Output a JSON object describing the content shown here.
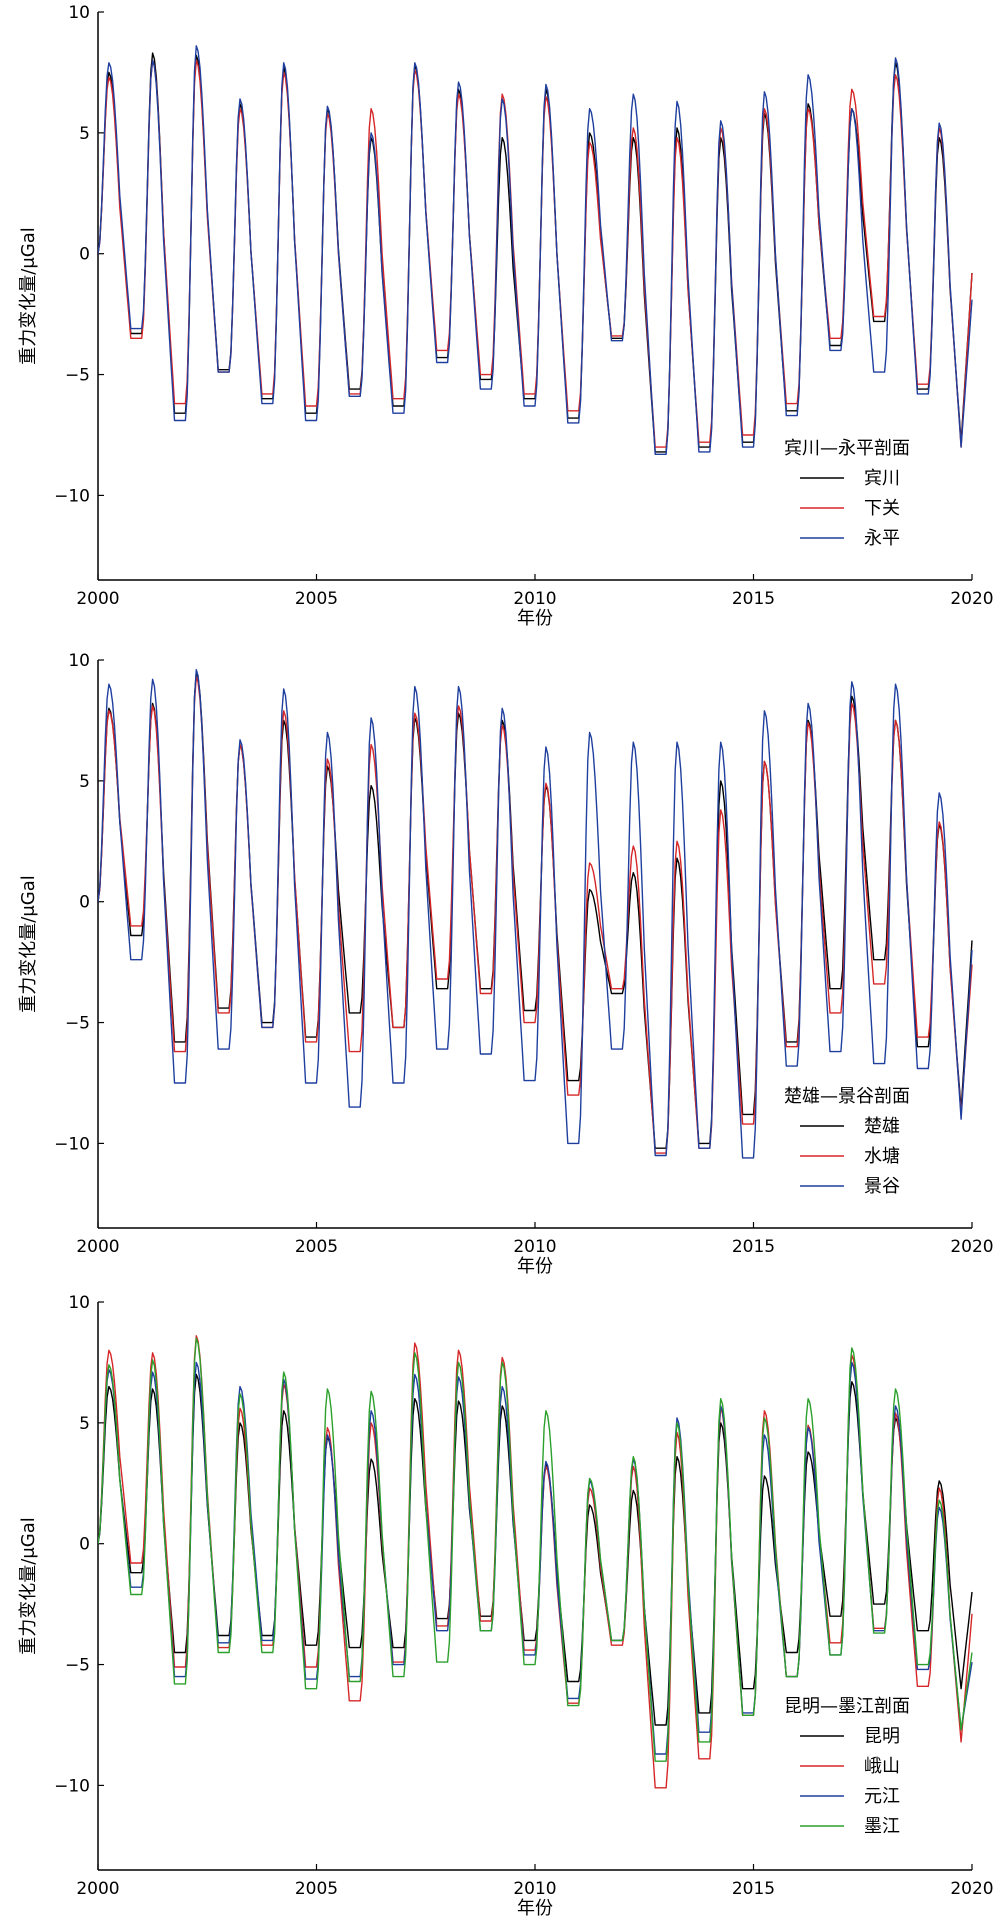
{
  "chart_data": [
    {
      "type": "line",
      "ylabel": "重力变化量/μGal",
      "xlabel": "年份",
      "xlim": [
        2000,
        2020
      ],
      "ylim": [
        -13.5,
        10
      ],
      "xticks": [
        2000,
        2005,
        2010,
        2015,
        2020
      ],
      "yticks": [
        -10,
        -5,
        0,
        5,
        10
      ],
      "legend_title": "宾川—永平剖面",
      "legend_position": "bottom-right",
      "series": [
        {
          "name": "宾川",
          "color": "#000000",
          "phase": 0.0,
          "amps": [
            7.5,
            8.3,
            8.2,
            6.2,
            7.7,
            6.0,
            4.8,
            7.8,
            6.8,
            4.8,
            6.8,
            5.0,
            4.8,
            5.2,
            4.8,
            5.8,
            6.2,
            6.0,
            7.9,
            4.8
          ],
          "troughs": [
            -3.3,
            -6.6,
            -4.8,
            -6.0,
            -6.6,
            -5.6,
            -6.3,
            -4.3,
            -5.2,
            -6.0,
            -6.8,
            -3.5,
            -8.2,
            -8.0,
            -7.8,
            -6.5,
            -3.8,
            -2.8,
            -5.6,
            -7.8
          ],
          "end": -0.8
        },
        {
          "name": "下关",
          "color": "#d62728",
          "phase": 0.0,
          "amps": [
            7.3,
            8.0,
            8.0,
            6.0,
            7.5,
            5.8,
            6.0,
            7.6,
            6.6,
            6.6,
            6.5,
            4.6,
            5.2,
            4.8,
            5.2,
            6.0,
            6.0,
            6.8,
            7.4,
            5.2
          ],
          "troughs": [
            -3.5,
            -6.2,
            -4.9,
            -5.8,
            -6.3,
            -5.8,
            -6.0,
            -4.0,
            -5.0,
            -5.8,
            -6.5,
            -3.4,
            -8.0,
            -7.8,
            -7.5,
            -6.2,
            -3.5,
            -2.6,
            -5.4,
            -8.0
          ],
          "end": -0.8
        },
        {
          "name": "永平",
          "color": "#1f3f9f",
          "phase": -0.01,
          "amps": [
            7.9,
            8.0,
            8.6,
            6.4,
            7.9,
            6.1,
            5.0,
            7.9,
            7.1,
            6.4,
            7.0,
            6.0,
            6.6,
            6.3,
            5.5,
            6.7,
            7.4,
            6.0,
            8.1,
            5.4
          ],
          "troughs": [
            -3.1,
            -6.9,
            -4.9,
            -6.2,
            -6.9,
            -5.9,
            -6.6,
            -4.5,
            -5.6,
            -6.3,
            -7.0,
            -3.6,
            -8.3,
            -8.2,
            -8.0,
            -6.7,
            -4.0,
            -4.9,
            -5.8,
            -8.0
          ],
          "end": -1.9
        }
      ]
    },
    {
      "type": "line",
      "ylabel": "重力变化量/μGal",
      "xlabel": "年份",
      "xlim": [
        2000,
        2020
      ],
      "ylim": [
        -13.5,
        10
      ],
      "xticks": [
        2000,
        2005,
        2010,
        2015,
        2020
      ],
      "yticks": [
        -10,
        -5,
        0,
        5,
        10
      ],
      "legend_title": "楚雄—景谷剖面",
      "legend_position": "bottom-right",
      "series": [
        {
          "name": "楚雄",
          "color": "#000000",
          "phase": 0.0,
          "amps": [
            8.0,
            8.2,
            9.5,
            6.5,
            7.5,
            5.6,
            4.8,
            7.6,
            7.8,
            7.5,
            4.8,
            0.5,
            1.2,
            1.8,
            5.0,
            5.8,
            7.5,
            8.5,
            7.5,
            3.2
          ],
          "troughs": [
            -1.4,
            -5.8,
            -4.4,
            -5.0,
            -5.6,
            -4.6,
            -5.2,
            -3.6,
            -3.6,
            -4.5,
            -7.4,
            -3.8,
            -10.2,
            -10.0,
            -8.8,
            -5.8,
            -3.6,
            -2.4,
            -6.0,
            -8.6
          ],
          "end": -1.6
        },
        {
          "name": "水塘",
          "color": "#d62728",
          "phase": 0.0,
          "amps": [
            7.9,
            8.1,
            9.3,
            6.5,
            7.9,
            5.9,
            6.5,
            7.8,
            8.1,
            7.3,
            4.9,
            1.6,
            2.3,
            2.5,
            3.8,
            5.8,
            7.4,
            8.2,
            7.5,
            3.3
          ],
          "troughs": [
            -1.0,
            -6.2,
            -4.6,
            -5.2,
            -5.8,
            -6.2,
            -5.2,
            -3.2,
            -3.8,
            -5.0,
            -8.0,
            -3.6,
            -10.4,
            -10.2,
            -9.2,
            -6.0,
            -4.6,
            -3.4,
            -5.6,
            -8.8
          ],
          "end": -2.6
        },
        {
          "name": "景谷",
          "color": "#1f3f9f",
          "phase": -0.02,
          "amps": [
            9.0,
            9.2,
            9.6,
            6.7,
            8.8,
            7.0,
            7.6,
            8.9,
            8.9,
            8.0,
            6.4,
            7.0,
            6.6,
            6.6,
            6.6,
            7.9,
            8.2,
            9.1,
            9.0,
            4.5
          ],
          "troughs": [
            -2.4,
            -7.5,
            -6.1,
            -5.2,
            -7.5,
            -8.5,
            -7.5,
            -6.1,
            -6.3,
            -7.4,
            -10.0,
            -6.1,
            -10.5,
            -10.2,
            -10.6,
            -6.8,
            -6.2,
            -6.7,
            -6.9,
            -9.0
          ],
          "end": -2.0
        }
      ]
    },
    {
      "type": "line",
      "ylabel": "重力变化量/μGal",
      "xlabel": "年份",
      "xlim": [
        2000,
        2020
      ],
      "ylim": [
        -13.5,
        10
      ],
      "xticks": [
        2000,
        2005,
        2010,
        2015,
        2020
      ],
      "yticks": [
        -10,
        -5,
        0,
        5,
        10
      ],
      "legend_title": "昆明—墨江剖面",
      "legend_position": "bottom-right",
      "series": [
        {
          "name": "昆明",
          "color": "#000000",
          "phase": 0.0,
          "amps": [
            6.5,
            6.4,
            7.0,
            5.0,
            5.5,
            4.4,
            3.5,
            6.0,
            5.9,
            5.7,
            3.3,
            1.6,
            2.2,
            3.6,
            5.0,
            2.8,
            3.8,
            6.7,
            5.2,
            2.6
          ],
          "troughs": [
            -1.2,
            -4.5,
            -3.8,
            -3.8,
            -4.2,
            -4.3,
            -4.3,
            -3.1,
            -3.0,
            -4.0,
            -5.7,
            -4.0,
            -7.5,
            -7.0,
            -6.0,
            -4.5,
            -3.0,
            -2.5,
            -3.6,
            -6.0
          ],
          "end": -2.0
        },
        {
          "name": "峨山",
          "color": "#d62728",
          "phase": 0.0,
          "amps": [
            8.0,
            7.9,
            8.6,
            5.6,
            6.6,
            4.8,
            5.0,
            8.3,
            8.0,
            7.7,
            3.2,
            2.3,
            3.2,
            4.6,
            5.6,
            5.5,
            4.9,
            7.8,
            5.4,
            2.3
          ],
          "troughs": [
            -0.8,
            -5.1,
            -4.3,
            -4.2,
            -5.1,
            -6.5,
            -4.9,
            -3.4,
            -3.2,
            -4.4,
            -6.6,
            -4.2,
            -10.1,
            -8.9,
            -7.1,
            -5.5,
            -4.1,
            -3.5,
            -5.9,
            -8.2
          ],
          "end": -2.9
        },
        {
          "name": "元江",
          "color": "#1f3f9f",
          "phase": 0.0,
          "amps": [
            7.2,
            7.1,
            7.5,
            6.5,
            6.8,
            4.5,
            5.5,
            7.0,
            6.9,
            6.5,
            3.4,
            2.6,
            3.5,
            5.2,
            5.7,
            4.5,
            4.8,
            7.5,
            5.7,
            1.5
          ],
          "troughs": [
            -1.8,
            -5.5,
            -4.1,
            -4.0,
            -5.6,
            -5.5,
            -5.0,
            -3.6,
            -3.6,
            -4.6,
            -6.4,
            -4.0,
            -8.7,
            -7.8,
            -7.0,
            -5.5,
            -4.6,
            -3.6,
            -5.2,
            -7.7
          ],
          "end": -4.9
        },
        {
          "name": "墨江",
          "color": "#2ca02c",
          "phase": 0.01,
          "amps": [
            7.4,
            7.6,
            8.5,
            6.2,
            7.1,
            6.4,
            6.3,
            7.9,
            7.5,
            7.5,
            5.5,
            2.7,
            3.6,
            5.0,
            6.0,
            5.2,
            6.0,
            8.1,
            6.4,
            1.8
          ],
          "troughs": [
            -2.1,
            -5.8,
            -4.5,
            -4.5,
            -6.0,
            -5.7,
            -5.5,
            -4.9,
            -3.6,
            -5.0,
            -6.7,
            -4.0,
            -9.0,
            -8.2,
            -7.1,
            -5.5,
            -4.6,
            -3.7,
            -5.0,
            -7.7
          ],
          "end": -4.5
        }
      ]
    }
  ]
}
